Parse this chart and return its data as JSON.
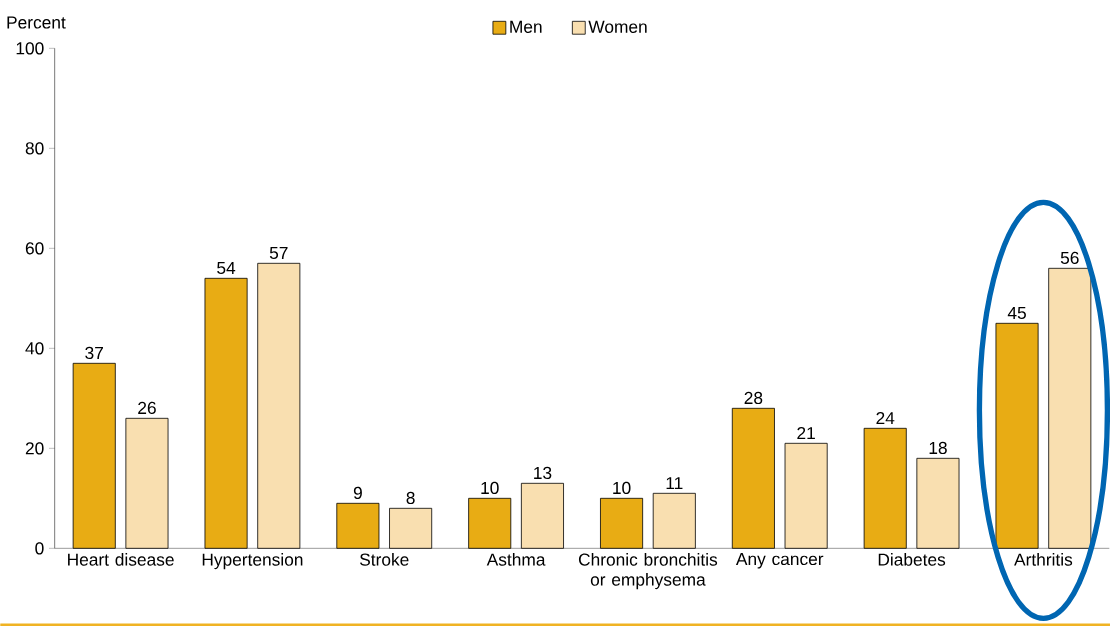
{
  "chart_data": {
    "type": "bar",
    "ylabel": "Percent",
    "categories": [
      "Heart disease",
      "Hypertension",
      "Stroke",
      "Asthma",
      "Chronic bronchitis or emphysema",
      "Any cancer",
      "Diabetes",
      "Arthritis"
    ],
    "series": [
      {
        "name": "Men",
        "color": "#e8ac14",
        "values": [
          37,
          54,
          9,
          10,
          10,
          28,
          24,
          45
        ]
      },
      {
        "name": "Women",
        "color": "#f9dfb0",
        "values": [
          26,
          57,
          8,
          13,
          11,
          21,
          18,
          56
        ]
      }
    ],
    "ylim": [
      0,
      100
    ],
    "yticks": [
      0,
      20,
      40,
      60,
      80,
      100
    ],
    "data_labels": true,
    "legend": "top",
    "grid": false
  }
}
